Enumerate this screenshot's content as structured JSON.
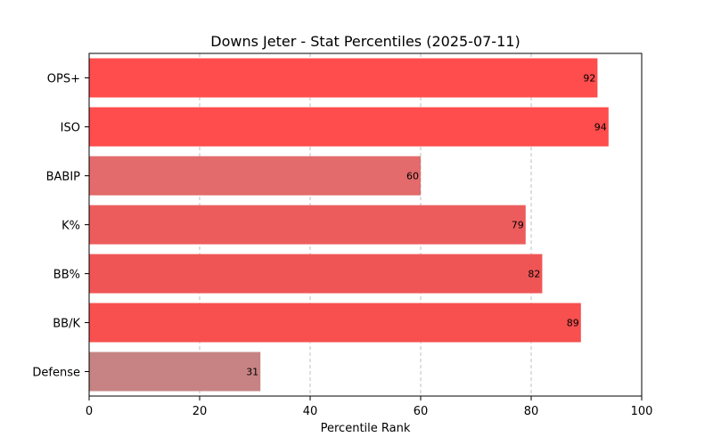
{
  "chart_data": {
    "type": "bar",
    "orientation": "horizontal",
    "title": "Downs Jeter - Stat Percentiles (2025-07-11)",
    "xlabel": "Percentile Rank",
    "ylabel": "",
    "xlim": [
      0,
      100
    ],
    "xticks": [
      0,
      20,
      40,
      60,
      80,
      100
    ],
    "grid": "x-dashed",
    "categories": [
      "OPS+",
      "ISO",
      "BABIP",
      "K%",
      "BB%",
      "BB/K",
      "Defense"
    ],
    "values": [
      92,
      94,
      60,
      79,
      82,
      89,
      31
    ],
    "colors": [
      "#ff4c4c",
      "#ff4c4c",
      "#e36b6b",
      "#ed5c5c",
      "#f05555",
      "#f84f4f",
      "#c78383"
    ]
  }
}
